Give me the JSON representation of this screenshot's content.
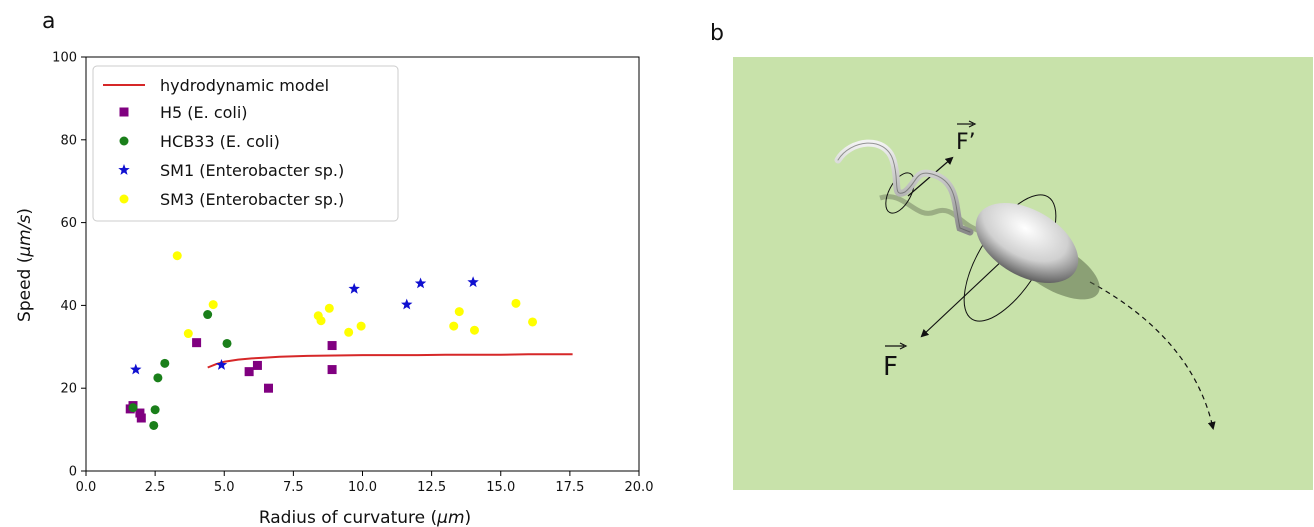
{
  "panels": {
    "a": "a",
    "b": "b"
  },
  "chart_data": {
    "type": "scatter",
    "title": "",
    "xlabel_main": "Radius of curvature (",
    "xlabel_unit": "μm",
    "xlabel_end": ")",
    "ylabel_main": "Speed (",
    "ylabel_unit": "μm/s",
    "ylabel_end": ")",
    "xlim": [
      0,
      20
    ],
    "ylim": [
      0,
      100
    ],
    "xticks": [
      0.0,
      2.5,
      5.0,
      7.5,
      10.0,
      12.5,
      15.0,
      17.5,
      20.0
    ],
    "xtick_labels": [
      "0.0",
      "2.5",
      "5.0",
      "7.5",
      "10.0",
      "12.5",
      "15.0",
      "17.5",
      "20.0"
    ],
    "yticks": [
      0,
      20,
      40,
      60,
      80,
      100
    ],
    "ytick_labels": [
      "0",
      "20",
      "40",
      "60",
      "80",
      "100"
    ],
    "grid": false,
    "legend_position": "top-left",
    "model": {
      "name": "hydrodynamic model",
      "color": "#d62728",
      "x": [
        4.4,
        4.7,
        5.0,
        5.5,
        6.0,
        6.5,
        7.0,
        8.0,
        9.0,
        10.0,
        11.0,
        12.0,
        13.0,
        14.0,
        15.0,
        16.0,
        17.0,
        17.6
      ],
      "y": [
        25.0,
        25.8,
        26.4,
        26.9,
        27.2,
        27.4,
        27.6,
        27.8,
        27.9,
        28.0,
        28.0,
        28.0,
        28.1,
        28.1,
        28.1,
        28.2,
        28.2,
        28.2
      ]
    },
    "series": [
      {
        "name": "H5 (E. coli)",
        "marker": "square",
        "color": "#800080",
        "points": [
          [
            1.6,
            15.0
          ],
          [
            1.7,
            15.8
          ],
          [
            1.95,
            14.0
          ],
          [
            2.0,
            12.8
          ],
          [
            4.0,
            31.0
          ],
          [
            5.9,
            24.0
          ],
          [
            6.2,
            25.5
          ],
          [
            6.6,
            20.0
          ],
          [
            8.9,
            30.3
          ],
          [
            8.9,
            24.5
          ]
        ]
      },
      {
        "name": "HCB33 (E. coli)",
        "marker": "circle",
        "color": "#1a7f1a",
        "points": [
          [
            1.7,
            15.3
          ],
          [
            2.45,
            11.0
          ],
          [
            2.5,
            14.8
          ],
          [
            2.6,
            22.5
          ],
          [
            2.85,
            26.0
          ],
          [
            4.4,
            37.8
          ],
          [
            5.1,
            30.8
          ]
        ]
      },
      {
        "name": "SM1 (Enterobacter sp.)",
        "marker": "star",
        "color": "#1010d0",
        "points": [
          [
            1.8,
            24.5
          ],
          [
            4.9,
            25.6
          ],
          [
            9.7,
            44.0
          ],
          [
            11.6,
            40.2
          ],
          [
            12.1,
            45.3
          ],
          [
            14.0,
            45.6
          ]
        ]
      },
      {
        "name": "SM3 (Enterobacter sp.)",
        "marker": "circle",
        "color": "#ffff00",
        "points": [
          [
            3.3,
            52.0
          ],
          [
            3.7,
            33.2
          ],
          [
            4.6,
            40.2
          ],
          [
            8.4,
            37.5
          ],
          [
            8.5,
            36.3
          ],
          [
            8.8,
            39.3
          ],
          [
            9.5,
            33.5
          ],
          [
            9.95,
            35.0
          ],
          [
            13.3,
            35.0
          ],
          [
            13.5,
            38.5
          ],
          [
            14.05,
            34.0
          ],
          [
            15.55,
            40.5
          ],
          [
            16.15,
            36.0
          ]
        ]
      }
    ]
  },
  "schematic": {
    "background_color": "#c8e2aa",
    "force_main": "F",
    "force_prime": "F’"
  }
}
